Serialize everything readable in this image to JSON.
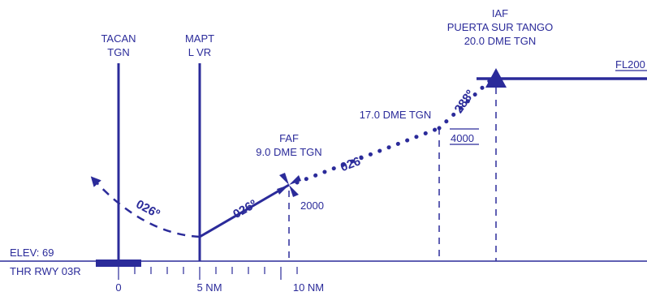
{
  "colors": {
    "ink": "#2b2b9a"
  },
  "fixes": {
    "tacan": {
      "line1": "TACAN",
      "line2": "TGN"
    },
    "mapt": {
      "line1": "MAPT",
      "line2": "L VR"
    },
    "faf": {
      "line1": "FAF",
      "line2": "9.0 DME TGN"
    },
    "iaf": {
      "line1": "IAF",
      "line2": "PUERTA SUR TANGO",
      "line3": "20.0 DME TGN"
    },
    "sdf": {
      "label": "17.0 DME TGN"
    }
  },
  "altitudes": {
    "faf": "2000",
    "sdf": "4000",
    "iaf": "FL200"
  },
  "courses": {
    "missed": "026º",
    "final": "026º",
    "intermediate": "026º",
    "initial": "288º"
  },
  "runway": {
    "elevation": "ELEV: 69",
    "threshold": "THR RWY 03R"
  },
  "scale": {
    "zero": "0",
    "five": "5 NM",
    "ten": "10 NM"
  }
}
